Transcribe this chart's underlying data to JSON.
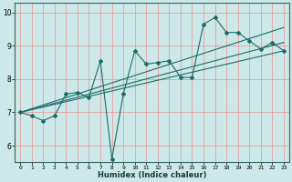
{
  "title": "",
  "xlabel": "Humidex (Indice chaleur)",
  "ylabel": "",
  "xlim": [
    -0.5,
    23.5
  ],
  "ylim": [
    5.5,
    10.3
  ],
  "bg_color": "#cce8e8",
  "grid_color": "#e8a0a0",
  "line_color": "#1a6e6a",
  "x_ticks": [
    0,
    1,
    2,
    3,
    4,
    5,
    6,
    7,
    8,
    9,
    10,
    11,
    12,
    13,
    14,
    15,
    16,
    17,
    18,
    19,
    20,
    21,
    22,
    23
  ],
  "y_ticks": [
    6,
    7,
    8,
    9,
    10
  ],
  "zigzag_x": [
    0,
    1,
    2,
    3,
    4,
    5,
    6,
    7,
    8,
    9,
    10,
    11,
    12,
    13,
    14,
    15,
    16,
    17,
    18,
    19,
    20,
    21,
    22,
    23
  ],
  "zigzag_y": [
    7.0,
    6.9,
    6.75,
    6.9,
    7.55,
    7.6,
    7.45,
    8.55,
    5.6,
    7.55,
    8.85,
    8.45,
    8.5,
    8.55,
    8.05,
    8.05,
    9.65,
    9.85,
    9.4,
    9.4,
    9.15,
    8.9,
    9.1,
    8.85
  ],
  "line1_x": [
    0,
    23
  ],
  "line1_y": [
    7.0,
    9.1
  ],
  "line2_x": [
    0,
    23
  ],
  "line2_y": [
    7.0,
    8.85
  ],
  "line3_x": [
    0,
    23
  ],
  "line3_y": [
    7.0,
    9.55
  ]
}
